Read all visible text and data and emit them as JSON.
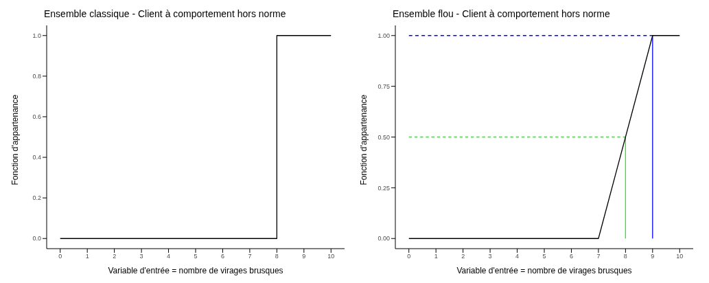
{
  "chart_data": [
    {
      "type": "line",
      "title": "Ensemble classique - Client à comportement hors norme",
      "xlabel": "Variable d'entrée = nombre de virages brusques",
      "ylabel": "Fonction d'appartenance",
      "xlim": [
        -0.5,
        10.5
      ],
      "ylim": [
        -0.05,
        1.05
      ],
      "xticks": [
        0,
        1,
        2,
        3,
        4,
        5,
        6,
        7,
        8,
        9,
        10
      ],
      "yticks": [
        {
          "value": 0,
          "label": "0.0"
        },
        {
          "value": 0.2,
          "label": "0.2"
        },
        {
          "value": 0.4,
          "label": "0.4"
        },
        {
          "value": 0.6,
          "label": "0.6"
        },
        {
          "value": 0.8,
          "label": "0.8"
        },
        {
          "value": 1,
          "label": "1.0"
        }
      ],
      "series": [
        {
          "color": "#000000",
          "x": [
            0,
            8,
            8,
            10
          ],
          "values": [
            0,
            0,
            1,
            1
          ]
        }
      ]
    },
    {
      "type": "line",
      "title": "Ensemble flou - Client à comportement hors norme",
      "xlabel": "Variable d'entrée = nombre de virages brusques",
      "ylabel": "Fonction d'appartenance",
      "xlim": [
        -0.5,
        10.5
      ],
      "ylim": [
        -0.05,
        1.05
      ],
      "xticks": [
        0,
        1,
        2,
        3,
        4,
        5,
        6,
        7,
        8,
        9,
        10
      ],
      "yticks": [
        {
          "value": 0,
          "label": "0.00"
        },
        {
          "value": 0.25,
          "label": "0.25"
        },
        {
          "value": 0.5,
          "label": "0.50"
        },
        {
          "value": 0.75,
          "label": "0.75"
        },
        {
          "value": 1,
          "label": "1.00"
        }
      ],
      "series": [
        {
          "color": "#00ff00",
          "x": [
            0,
            8
          ],
          "values": [
            0.5,
            0.5
          ],
          "line_style": "dashed"
        },
        {
          "color": "#00ff00",
          "x": [
            8,
            8
          ],
          "values": [
            0,
            0.5
          ],
          "line_style": "solid"
        },
        {
          "color": "#0000ff",
          "x": [
            0,
            9
          ],
          "values": [
            1,
            1
          ],
          "line_style": "dashed"
        },
        {
          "color": "#0000ff",
          "x": [
            9,
            9
          ],
          "values": [
            0,
            1
          ],
          "line_style": "solid"
        },
        {
          "color": "#000000",
          "x": [
            0,
            7,
            9,
            10
          ],
          "values": [
            0,
            0,
            1,
            1
          ]
        }
      ]
    }
  ]
}
